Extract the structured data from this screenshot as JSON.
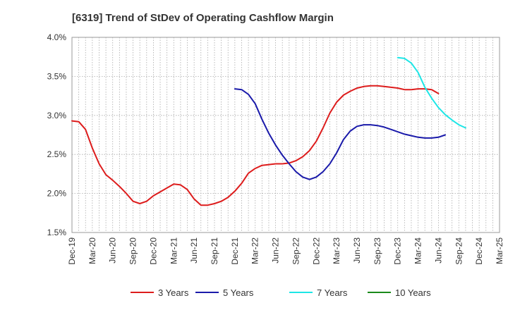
{
  "chart_data": {
    "type": "line",
    "title": "[6319]  Trend of StDev of Operating Cashflow Margin",
    "xlabel": "",
    "ylabel": "",
    "ylim": [
      1.5,
      4.0
    ],
    "y_ticks": [
      "1.5%",
      "2.0%",
      "2.5%",
      "3.0%",
      "3.5%",
      "4.0%"
    ],
    "y_tick_values": [
      1.5,
      2.0,
      2.5,
      3.0,
      3.5,
      4.0
    ],
    "x_ticks": [
      "Dec-19",
      "Mar-20",
      "Jun-20",
      "Sep-20",
      "Dec-20",
      "Mar-21",
      "Jun-21",
      "Sep-21",
      "Dec-21",
      "Mar-22",
      "Jun-22",
      "Sep-22",
      "Dec-22",
      "Mar-23",
      "Jun-23",
      "Sep-23",
      "Dec-23",
      "Mar-24",
      "Jun-24",
      "Sep-24",
      "Dec-24",
      "Mar-25"
    ],
    "x_start": "Dec-19",
    "x_end": "Mar-25",
    "grid": true,
    "legend_position": "bottom",
    "series": [
      {
        "name": "3 Years",
        "color": "#dd1c1c",
        "start": "Dec-19",
        "values": [
          2.93,
          2.92,
          2.82,
          2.58,
          2.38,
          2.24,
          2.17,
          2.09,
          2.0,
          1.9,
          1.87,
          1.9,
          1.97,
          2.02,
          2.07,
          2.12,
          2.11,
          2.05,
          1.93,
          1.85,
          1.85,
          1.87,
          1.9,
          1.95,
          2.03,
          2.13,
          2.26,
          2.32,
          2.36,
          2.37,
          2.38,
          2.38,
          2.39,
          2.42,
          2.47,
          2.55,
          2.67,
          2.84,
          3.03,
          3.17,
          3.26,
          3.31,
          3.35,
          3.37,
          3.38,
          3.38,
          3.37,
          3.36,
          3.35,
          3.33,
          3.33,
          3.34,
          3.34,
          3.33,
          3.28
        ]
      },
      {
        "name": "5 Years",
        "color": "#1a1aaa",
        "start": "Dec-21",
        "values": [
          3.34,
          3.33,
          3.27,
          3.15,
          2.95,
          2.77,
          2.62,
          2.49,
          2.38,
          2.28,
          2.21,
          2.18,
          2.21,
          2.28,
          2.38,
          2.52,
          2.69,
          2.8,
          2.86,
          2.88,
          2.88,
          2.87,
          2.85,
          2.82,
          2.79,
          2.76,
          2.74,
          2.72,
          2.71,
          2.71,
          2.72,
          2.75
        ]
      },
      {
        "name": "7 Years",
        "color": "#1de6e6",
        "start": "Dec-23",
        "values": [
          3.74,
          3.73,
          3.67,
          3.55,
          3.36,
          3.22,
          3.1,
          3.01,
          2.94,
          2.88,
          2.84
        ]
      },
      {
        "name": "10 Years",
        "color": "#1a8a1a",
        "start": "Dec-24",
        "values": []
      }
    ]
  }
}
